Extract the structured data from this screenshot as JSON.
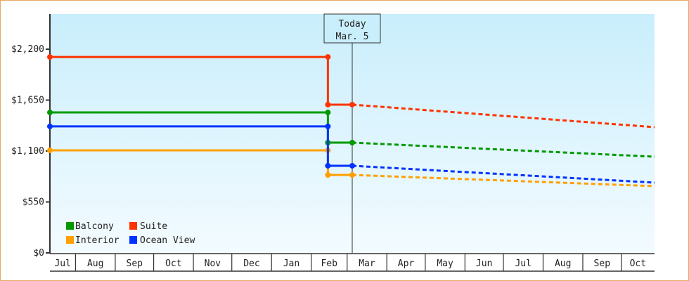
{
  "chart_data": {
    "type": "line",
    "title": "",
    "xlabel": "",
    "ylabel": "",
    "ylim": [
      0,
      2500
    ],
    "yticks": [
      0,
      550,
      1100,
      1650,
      2200
    ],
    "ytick_labels": [
      "$0",
      "$550",
      "$1,100",
      "$1,650",
      "$2,200"
    ],
    "x_months": [
      "Jul",
      "Aug",
      "Sep",
      "Oct",
      "Nov",
      "Dec",
      "Jan",
      "Feb",
      "Mar",
      "Apr",
      "May",
      "Jun",
      "Jul",
      "Aug",
      "Sep",
      "Oct"
    ],
    "xlim": [
      "Jul 12",
      "Oct 27"
    ],
    "grid": false,
    "background": "gradient light blue",
    "today_marker": {
      "line1": "Today",
      "line2": "Mar. 5",
      "date": "Mar 5"
    },
    "legend": {
      "placement": "bottom-left"
    },
    "series": [
      {
        "name": "Balcony",
        "color": "#009900",
        "history": [
          [
            "Jul 12",
            1517
          ],
          [
            "Feb 14",
            1517
          ],
          [
            "Feb 14",
            1191
          ],
          [
            "Mar 5",
            1191
          ]
        ],
        "forecast": [
          [
            "Mar 5",
            1191
          ],
          [
            "Oct 27",
            1039
          ]
        ]
      },
      {
        "name": "Suite",
        "color": "#ff3300",
        "history": [
          [
            "Jul 12",
            2116
          ],
          [
            "Feb 14",
            2116
          ],
          [
            "Feb 14",
            1601
          ],
          [
            "Mar 5",
            1601
          ]
        ],
        "forecast": [
          [
            "Mar 5",
            1601
          ],
          [
            "Oct 27",
            1358
          ]
        ]
      },
      {
        "name": "Interior",
        "color": "#ffa000",
        "history": [
          [
            "Jul 12",
            1108
          ],
          [
            "Feb 14",
            1108
          ],
          [
            "Feb 14",
            842
          ],
          [
            "Mar 5",
            842
          ]
        ],
        "forecast": [
          [
            "Mar 5",
            842
          ],
          [
            "Oct 27",
            721
          ]
        ]
      },
      {
        "name": "Ocean View",
        "color": "#0033ff",
        "history": [
          [
            "Jul 12",
            1366
          ],
          [
            "Feb 14",
            1366
          ],
          [
            "Feb 14",
            941
          ],
          [
            "Mar 5",
            941
          ]
        ],
        "forecast": [
          [
            "Mar 5",
            941
          ],
          [
            "Oct 27",
            759
          ]
        ]
      }
    ]
  }
}
